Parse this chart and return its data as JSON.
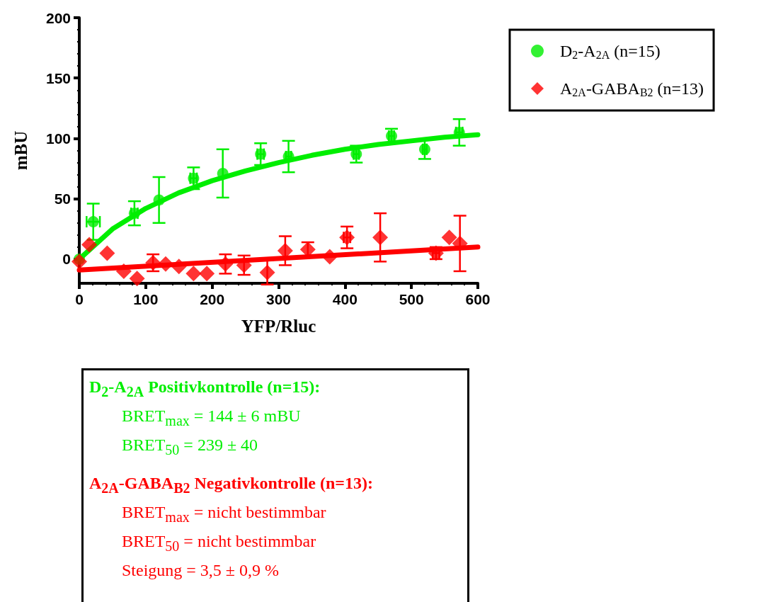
{
  "chart_data": {
    "type": "scatter",
    "xlabel": "YFP/Rluc",
    "ylabel": "mBU",
    "xlim": [
      0,
      600
    ],
    "xticks": [
      0,
      100,
      200,
      300,
      400,
      500,
      600
    ],
    "ylim": [
      -20,
      200
    ],
    "yticks": [
      0,
      50,
      100,
      150,
      200
    ],
    "grid": false,
    "legend": "top right",
    "series": [
      {
        "name": "D$_{2}$-A$_{2A}$ (n=15)",
        "color": "#00ee00",
        "marker": "circle",
        "x": [
          0,
          21,
          83,
          120,
          172,
          216,
          273,
          315,
          417,
          470,
          520,
          572
        ],
        "values": [
          0,
          31,
          38,
          49,
          67,
          71,
          87,
          85,
          87,
          102,
          91,
          105
        ],
        "errors": [
          null,
          15,
          10,
          19,
          9,
          20,
          9,
          13,
          7,
          6,
          8,
          11
        ],
        "xerrors": [
          null,
          10,
          5,
          null,
          5,
          null,
          5,
          4,
          4,
          4,
          3,
          5
        ]
      },
      {
        "name": "A$_{2A}$-GABA$_{B2}$ (n=13)",
        "color": "#ff0000",
        "marker": "diamond",
        "x": [
          0,
          15,
          42,
          67,
          87,
          111,
          130,
          150,
          172,
          192,
          220,
          248,
          283,
          310,
          344,
          377,
          403,
          453,
          537,
          557,
          573
        ],
        "values": [
          -2,
          12,
          5,
          -10,
          -16,
          -3,
          -4,
          -6,
          -12,
          -12,
          -4,
          -5,
          -11,
          7,
          8,
          2,
          18,
          18,
          5,
          18,
          13
        ],
        "errors": [
          null,
          null,
          null,
          null,
          null,
          7,
          null,
          null,
          null,
          null,
          8,
          8,
          10,
          12,
          6,
          null,
          9,
          20,
          5,
          null,
          23
        ],
        "xerrors": [
          null,
          null,
          null,
          null,
          null,
          null,
          null,
          null,
          null,
          null,
          null,
          null,
          null,
          null,
          null,
          null,
          5,
          null,
          5,
          null,
          null
        ]
      },
      {
        "type": "line",
        "color": "#00ee00",
        "marker": "none",
        "x": [
          0,
          50,
          100,
          150,
          200,
          250,
          300,
          350,
          400,
          450,
          500,
          550,
          600
        ],
        "values": [
          0,
          25,
          42,
          55,
          65,
          73,
          80,
          86,
          91,
          95,
          98,
          101,
          103
        ]
      },
      {
        "type": "line",
        "color": "#ff0000",
        "marker": "none",
        "x": [
          0,
          600
        ],
        "values": [
          -9,
          10
        ]
      }
    ],
    "annotations": [
      "D$_{2}$-A$_{2A}$ Positivkontrolle (n=15):",
      "BRET$_{max}$ = 144 ± 6 mBU",
      "BRET$_{50}$ = 239 ± 40",
      "A$_{2A}$-GABA$_{B2}$ Negativkontrolle (n=13):",
      "BRET$_{max}$ = nicht bestimmbar",
      "BRET$_{50}$ = nicht bestimmbar",
      "Steigung = 3,5 ± 0,9 %"
    ]
  }
}
